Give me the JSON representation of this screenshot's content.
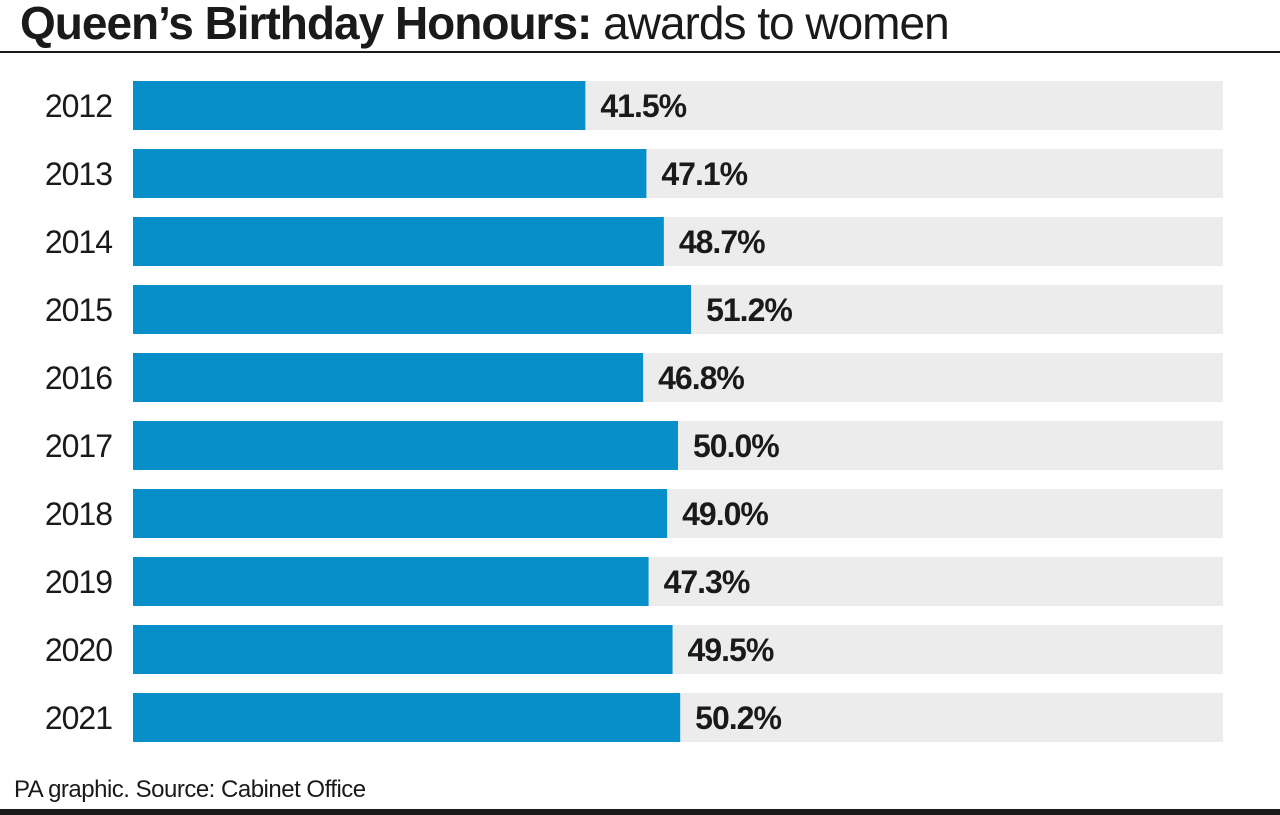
{
  "title": {
    "bold": "Queen’s Birthday Honours:",
    "regular": " awards to women"
  },
  "source": "PA graphic. Source: Cabinet Office",
  "colors": {
    "bar": "#068fc8",
    "track": "#ececec",
    "text": "#1a1a1a"
  },
  "chart_data": {
    "type": "bar",
    "orientation": "horizontal",
    "title": "Queen’s Birthday Honours: awards to women",
    "categories": [
      "2012",
      "2013",
      "2014",
      "2015",
      "2016",
      "2017",
      "2018",
      "2019",
      "2020",
      "2021"
    ],
    "values": [
      41.5,
      47.1,
      48.7,
      51.2,
      46.8,
      50.0,
      49.0,
      47.3,
      49.5,
      50.2
    ],
    "labels": [
      "41.5%",
      "47.1%",
      "48.7%",
      "51.2%",
      "46.8%",
      "50.0%",
      "49.0%",
      "47.3%",
      "49.5%",
      "50.2%"
    ],
    "xlim": [
      0,
      100
    ],
    "grid": false,
    "legend": "none"
  }
}
